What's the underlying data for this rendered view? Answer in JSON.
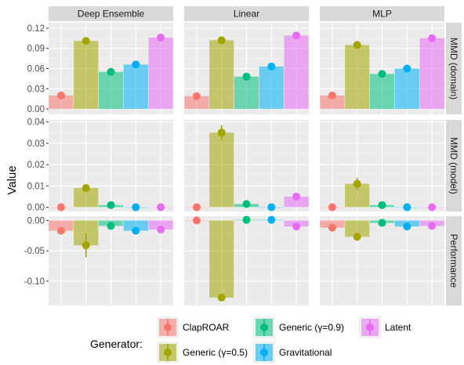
{
  "chart_data": {
    "type": "bar",
    "ylabel": "Value",
    "xlabel": "",
    "legend_title": "Generator:",
    "legend_position": "bottom",
    "grid": true,
    "facet_columns": [
      "Deep Ensemble",
      "Linear",
      "MLP"
    ],
    "facet_rows": [
      {
        "label": "MMD (domain)",
        "ylim": [
          -0.008,
          0.128
        ],
        "yticks": [
          0.0,
          0.03,
          0.06,
          0.09,
          0.12
        ],
        "tick_labels": [
          "0.00",
          "0.03",
          "0.06",
          "0.09",
          "0.12"
        ]
      },
      {
        "label": "MMD (model)",
        "ylim": [
          -0.002,
          0.041
        ],
        "yticks": [
          0.0,
          0.01,
          0.02,
          0.03,
          0.04
        ],
        "tick_labels": [
          "0.00",
          "0.01",
          "0.02",
          "0.03",
          "0.04"
        ]
      },
      {
        "label": "Performance",
        "ylim": [
          -0.14,
          0.007
        ],
        "yticks": [
          0.0,
          -0.05,
          -0.1
        ],
        "tick_labels": [
          "0.00",
          "-0.05",
          "-0.10"
        ]
      }
    ],
    "legend_order": [
      "ClapROAR",
      "Generic (γ=0.5)",
      "Generic (γ=0.9)",
      "Gravitational",
      "Latent"
    ],
    "series": [
      {
        "name": "ClapROAR",
        "color": "#F8766D",
        "values": [
          [
            0.02,
            0.019,
            0.02
          ],
          [
            0.0,
            0.0,
            0.0
          ],
          [
            -0.017,
            0.0,
            -0.012
          ]
        ],
        "errors": [
          [
            0.002,
            0.002,
            0.002
          ],
          [
            0.0003,
            0.0003,
            0.0003
          ],
          [
            0.002,
            0.002,
            0.002
          ]
        ]
      },
      {
        "name": "Generic (γ=0.5)",
        "color": "#A3A500",
        "values": [
          [
            0.101,
            0.102,
            0.095
          ],
          [
            0.009,
            0.035,
            0.011
          ],
          [
            -0.041,
            -0.127,
            -0.027
          ]
        ],
        "errors": [
          [
            0.005,
            0.003,
            0.004
          ],
          [
            0.0018,
            0.0035,
            0.0028
          ],
          [
            0.02,
            0.004,
            0.005
          ]
        ]
      },
      {
        "name": "Generic (γ=0.9)",
        "color": "#00BF7D",
        "values": [
          [
            0.055,
            0.048,
            0.052
          ],
          [
            0.001,
            0.0015,
            0.001
          ],
          [
            -0.009,
            0.001,
            -0.004
          ]
        ],
        "errors": [
          [
            0.003,
            0.002,
            0.002
          ],
          [
            0.0003,
            0.0003,
            0.0003
          ],
          [
            0.002,
            0.002,
            0.002
          ]
        ]
      },
      {
        "name": "Gravitational",
        "color": "#00B0F6",
        "values": [
          [
            0.066,
            0.063,
            0.06
          ],
          [
            0.0,
            0.0,
            0.0
          ],
          [
            -0.017,
            0.001,
            -0.01
          ]
        ],
        "errors": [
          [
            0.002,
            0.002,
            0.002
          ],
          [
            0.0003,
            0.0003,
            0.0003
          ],
          [
            0.002,
            0.002,
            0.002
          ]
        ]
      },
      {
        "name": "Latent",
        "color": "#E76BF3",
        "values": [
          [
            0.106,
            0.109,
            0.105
          ],
          [
            0.0,
            0.005,
            0.0
          ],
          [
            -0.015,
            -0.01,
            -0.009
          ]
        ],
        "errors": [
          [
            0.004,
            0.003,
            0.004
          ],
          [
            0.0003,
            0.0006,
            0.0003
          ],
          [
            0.002,
            0.002,
            0.002
          ]
        ]
      }
    ]
  }
}
